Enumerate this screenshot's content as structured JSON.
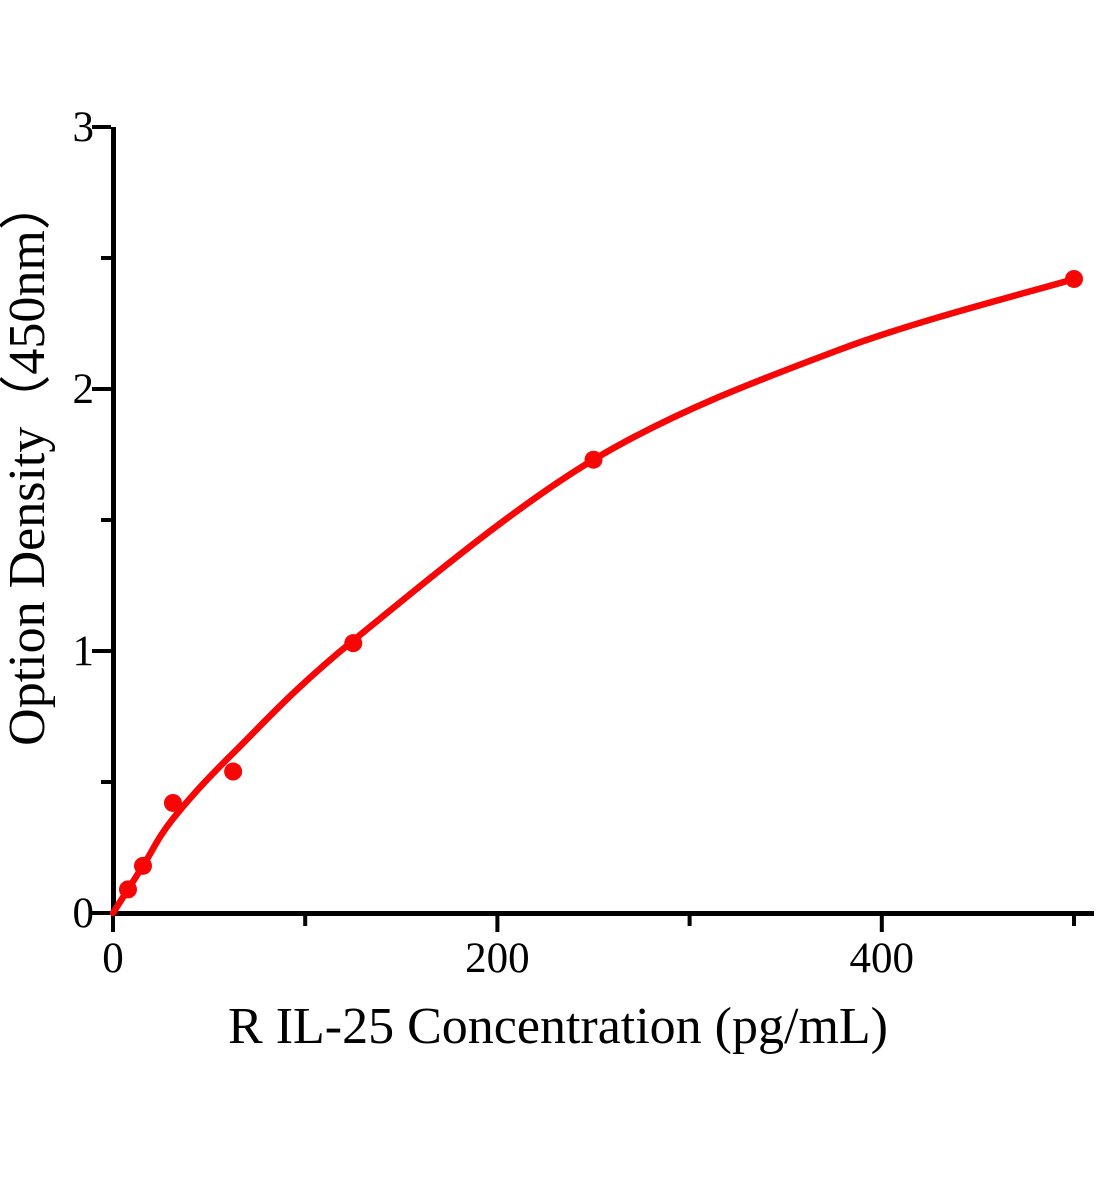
{
  "figure": {
    "background": "#ffffff"
  },
  "chart_data": {
    "type": "scatter",
    "title": "",
    "xlabel": "R IL-25 Concentration (pg/mL)",
    "ylabel": "Option Density（450nm）",
    "x": [
      7.8,
      15.6,
      31.2,
      62.5,
      125,
      250,
      500
    ],
    "y": [
      0.09,
      0.18,
      0.42,
      0.54,
      1.03,
      1.73,
      2.42
    ],
    "curve_points": [
      [
        0,
        0
      ],
      [
        15.6,
        0.18
      ],
      [
        31.2,
        0.36
      ],
      [
        62.5,
        0.61
      ],
      [
        125,
        1.04
      ],
      [
        250,
        1.73
      ],
      [
        378,
        2.15
      ],
      [
        500,
        2.42
      ]
    ],
    "xlim": [
      0,
      510
    ],
    "ylim": [
      0,
      3
    ],
    "x_major_ticks": [
      0,
      200,
      400
    ],
    "x_minor_ticks": [
      100,
      300,
      500
    ],
    "y_major_ticks": [
      0,
      1,
      2,
      3
    ],
    "y_minor_ticks": [
      0.5,
      1.5,
      2.5
    ],
    "grid": false,
    "legend": false,
    "point_color": "#f70606",
    "line_color": "#f70606",
    "axis_color": "#000000"
  }
}
